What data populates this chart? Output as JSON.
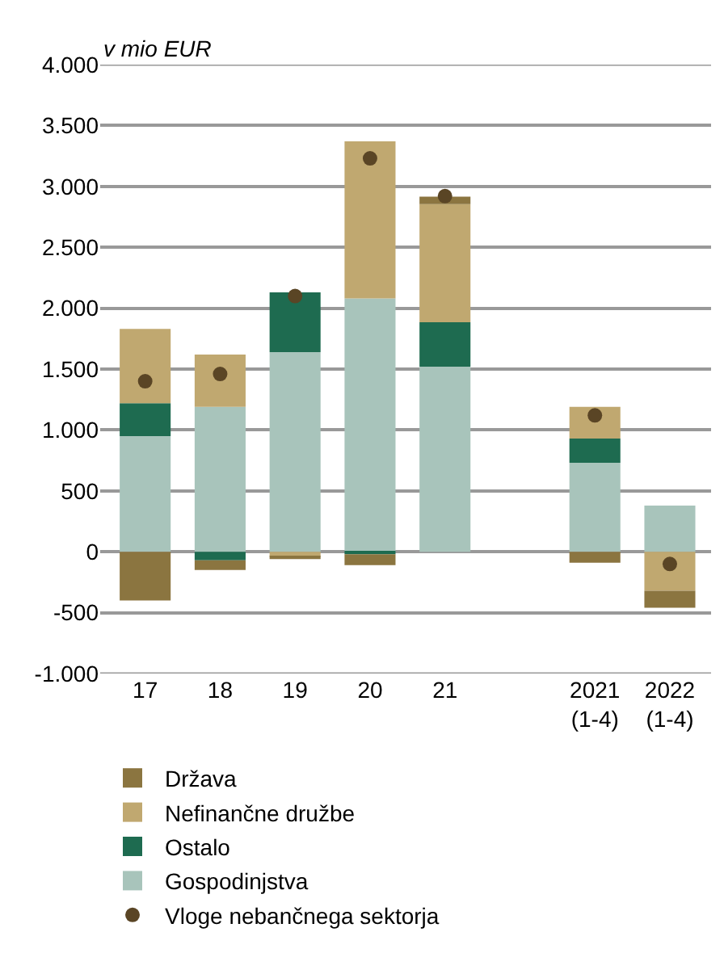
{
  "chart_data": {
    "type": "bar",
    "stacked": true,
    "ylabel": "v mio EUR",
    "categories": [
      "17",
      "18",
      "19",
      "20",
      "21",
      null,
      "2021\n(1-4)",
      "2022\n(1-4)"
    ],
    "series": [
      {
        "name": "Gospodinjstva",
        "color": "#a8c4bb",
        "values": [
          950,
          1190,
          1640,
          2080,
          1520,
          null,
          730,
          380
        ]
      },
      {
        "name": "Ostalo",
        "color": "#1e6b50",
        "values": [
          270,
          -70,
          490,
          -20,
          365,
          null,
          200,
          0
        ]
      },
      {
        "name": "Nefinančne družbe",
        "color": "#c0a870",
        "values": [
          610,
          430,
          -40,
          1290,
          970,
          null,
          260,
          -320
        ]
      },
      {
        "name": "Država",
        "color": "#8b7540",
        "values": [
          -400,
          -80,
          -20,
          -90,
          60,
          null,
          -90,
          -140
        ]
      },
      {
        "name": "Vloge nebančnega sektorja",
        "type": "scatter",
        "marker": "circle",
        "color": "#5a4525",
        "values": [
          1400,
          1460,
          2100,
          3230,
          2920,
          null,
          1120,
          -100
        ]
      }
    ],
    "ylim": [
      -1000,
      4000
    ],
    "yticks": [
      {
        "value": -1000,
        "label": "-1.000"
      },
      {
        "value": -500,
        "label": "-500"
      },
      {
        "value": 0,
        "label": "0"
      },
      {
        "value": 500,
        "label": "500"
      },
      {
        "value": 1000,
        "label": "1.000"
      },
      {
        "value": 1500,
        "label": "1.500"
      },
      {
        "value": 2000,
        "label": "2.000"
      },
      {
        "value": 2500,
        "label": "2.500"
      },
      {
        "value": 3000,
        "label": "3.000"
      },
      {
        "value": 3500,
        "label": "3.500"
      },
      {
        "value": 4000,
        "label": "4.000"
      }
    ],
    "grid": "y",
    "legend": "bottom"
  }
}
